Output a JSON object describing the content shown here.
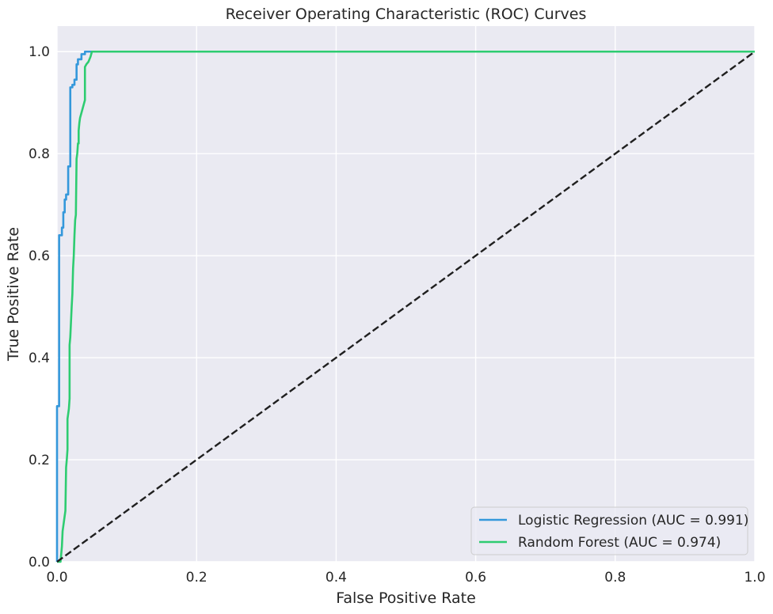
{
  "chart_data": {
    "type": "line",
    "title": "Receiver Operating Characteristic (ROC) Curves",
    "xlabel": "False Positive Rate",
    "ylabel": "True Positive Rate",
    "xlim": [
      0.0,
      1.0
    ],
    "ylim": [
      0.0,
      1.05
    ],
    "xticks": [
      0.0,
      0.2,
      0.4,
      0.6,
      0.8,
      1.0
    ],
    "yticks": [
      0.0,
      0.2,
      0.4,
      0.6,
      0.8,
      1.0
    ],
    "xtick_labels": [
      "0.0",
      "0.2",
      "0.4",
      "0.6",
      "0.8",
      "1.0"
    ],
    "ytick_labels": [
      "0.0",
      "0.2",
      "0.4",
      "0.6",
      "0.8",
      "1.0"
    ],
    "grid": true,
    "legend_position": "bottom-right",
    "background_color": "#EAEAF2",
    "series": [
      {
        "name": "Logistic Regression (AUC = 0.991)",
        "color": "#3498DB",
        "x": [
          0.0,
          0.0,
          0.003,
          0.003,
          0.007,
          0.007,
          0.009,
          0.009,
          0.011,
          0.011,
          0.013,
          0.013,
          0.016,
          0.016,
          0.019,
          0.019,
          0.022,
          0.022,
          0.025,
          0.025,
          0.028,
          0.028,
          0.03,
          0.03,
          0.035,
          0.035,
          0.04,
          0.04,
          0.045,
          1.0
        ],
        "y": [
          0.0,
          0.305,
          0.305,
          0.64,
          0.64,
          0.655,
          0.655,
          0.685,
          0.685,
          0.71,
          0.71,
          0.72,
          0.72,
          0.775,
          0.775,
          0.93,
          0.93,
          0.935,
          0.935,
          0.945,
          0.945,
          0.975,
          0.975,
          0.985,
          0.985,
          0.995,
          0.995,
          1.0,
          1.0,
          1.0
        ]
      },
      {
        "name": "Random Forest (AUC = 0.974)",
        "color": "#2ECC71",
        "x": [
          0.0,
          0.005,
          0.007,
          0.008,
          0.009,
          0.01,
          0.011,
          0.012,
          0.013,
          0.014,
          0.015,
          0.015,
          0.017,
          0.018,
          0.018,
          0.019,
          0.02,
          0.021,
          0.022,
          0.023,
          0.024,
          0.025,
          0.026,
          0.027,
          0.028,
          0.029,
          0.03,
          0.031,
          0.031,
          0.032,
          0.033,
          0.035,
          0.038,
          0.04,
          0.04,
          0.042,
          0.045,
          0.048,
          0.05,
          0.052,
          1.0
        ],
        "y": [
          0.0,
          0.0,
          0.03,
          0.06,
          0.07,
          0.08,
          0.09,
          0.1,
          0.185,
          0.2,
          0.22,
          0.28,
          0.3,
          0.32,
          0.425,
          0.44,
          0.47,
          0.5,
          0.525,
          0.575,
          0.6,
          0.64,
          0.67,
          0.68,
          0.79,
          0.8,
          0.82,
          0.82,
          0.845,
          0.86,
          0.87,
          0.88,
          0.895,
          0.905,
          0.97,
          0.975,
          0.98,
          0.99,
          1.0,
          1.0,
          1.0
        ]
      },
      {
        "name": "",
        "color": "#1F1F1F",
        "style": "dashed",
        "x": [
          0.0,
          1.0
        ],
        "y": [
          0.0,
          1.0
        ]
      }
    ]
  }
}
